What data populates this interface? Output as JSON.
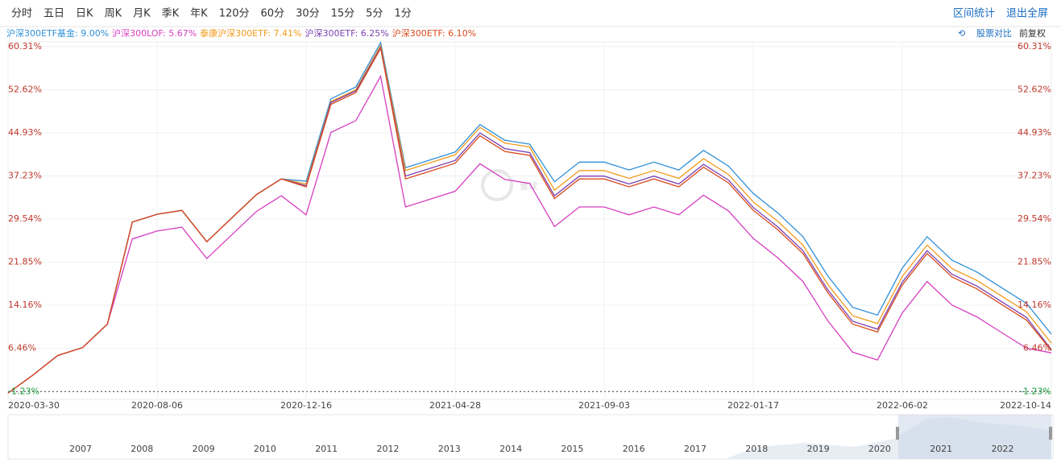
{
  "toolbar": {
    "left": [
      "分时",
      "五日",
      "日K",
      "周K",
      "月K",
      "季K",
      "年K",
      "120分",
      "60分",
      "30分",
      "15分",
      "5分",
      "1分"
    ],
    "right": [
      "区间统计",
      "退出全屏"
    ],
    "compare": "股票对比",
    "adjust": "前复权"
  },
  "watermark": "雪球",
  "navigator_years": [
    "2007",
    "2008",
    "2009",
    "2010",
    "2011",
    "2012",
    "2013",
    "2014",
    "2015",
    "2016",
    "2017",
    "2018",
    "2019",
    "2020",
    "2021",
    "2022"
  ],
  "chart_data": {
    "type": "line",
    "categories": [
      "2020-03-30",
      null,
      null,
      null,
      null,
      null,
      "2020-08-06",
      null,
      null,
      null,
      null,
      null,
      "2020-12-16",
      null,
      null,
      null,
      null,
      null,
      "2021-04-28",
      null,
      null,
      null,
      null,
      null,
      "2021-09-03",
      null,
      null,
      null,
      null,
      null,
      "2022-01-17",
      null,
      null,
      null,
      null,
      null,
      "2022-06-02",
      null,
      null,
      null,
      null,
      null,
      "2022-10-14"
    ],
    "ylim": [
      -2.63,
      61.15
    ],
    "yticks": [
      {
        "value": 60.31,
        "label": "60.31%"
      },
      {
        "value": 52.62,
        "label": "52.62%"
      },
      {
        "value": 44.93,
        "label": "44.93%"
      },
      {
        "value": 37.23,
        "label": "37.23%"
      },
      {
        "value": 29.54,
        "label": "29.54%"
      },
      {
        "value": 21.85,
        "label": "21.85%"
      },
      {
        "value": 14.16,
        "label": "14.16%"
      },
      {
        "value": 6.46,
        "label": "6.46%"
      },
      {
        "value": -1.23,
        "label": "-1.23%"
      }
    ],
    "grid": true,
    "series": [
      {
        "name": "沪深300ETF基金: 9.00%",
        "color": "#2f8fd8",
        "values": [
          -1.5,
          1.7,
          5.2,
          6.6,
          10.8,
          29,
          30.4,
          31.1,
          25.5,
          29.7,
          33.9,
          36.7,
          36.3,
          51,
          53.1,
          61,
          38.7,
          40.1,
          41.5,
          46.4,
          43.6,
          42.9,
          36.2,
          39.7,
          39.7,
          38.3,
          39.7,
          38.3,
          41.8,
          39,
          34.1,
          30.6,
          26.4,
          19.4,
          13.8,
          12.4,
          20.8,
          26.4,
          22.2,
          20.1,
          17.3,
          14.5,
          9.0
        ]
      },
      {
        "name": "沪深300LOF: 5.67%",
        "color": "#d63fc0",
        "values": [
          -1.5,
          1.7,
          5.2,
          6.6,
          10.8,
          26,
          27.4,
          28.1,
          22.5,
          26.7,
          30.9,
          33.7,
          30.3,
          45,
          47.1,
          55,
          31.7,
          33.1,
          34.5,
          39.4,
          36.6,
          35.9,
          28.2,
          31.7,
          31.7,
          30.3,
          31.7,
          30.3,
          33.8,
          31,
          26.1,
          22.6,
          18.4,
          11.4,
          5.8,
          4.4,
          12.8,
          18.4,
          14.2,
          12.1,
          9.3,
          6.5,
          5.67
        ]
      },
      {
        "name": "泰康沪深300ETF: 7.41%",
        "color": "#f29b1a",
        "values": [
          -1.5,
          1.7,
          5.2,
          6.6,
          10.8,
          29,
          30.4,
          31.1,
          25.5,
          29.7,
          33.9,
          36.7,
          35.8,
          50.5,
          52.6,
          60.5,
          38.2,
          39.6,
          41,
          45.9,
          43.1,
          42.4,
          34.7,
          38.2,
          38.2,
          36.8,
          38.2,
          36.8,
          40.3,
          37.5,
          32.6,
          29.1,
          24.9,
          17.9,
          12.3,
          10.9,
          19.3,
          24.9,
          20.7,
          18.6,
          15.8,
          13,
          7.41
        ]
      },
      {
        "name": "沪深300ETF: 6.25%",
        "color": "#7a3fb0",
        "values": [
          -1.5,
          1.7,
          5.2,
          6.6,
          10.8,
          29,
          30.4,
          31.1,
          25.5,
          29.7,
          33.9,
          36.7,
          35.5,
          50.3,
          52.4,
          60.2,
          37.2,
          38.6,
          40,
          44.9,
          42.1,
          41.4,
          33.7,
          37.2,
          37.2,
          35.8,
          37.2,
          35.8,
          39.3,
          36.5,
          31.6,
          28.1,
          23.9,
          16.9,
          11.3,
          9.9,
          18.3,
          23.9,
          19.7,
          17.6,
          14.8,
          12,
          6.25
        ]
      },
      {
        "name": "沪深300ETF: 6.10%",
        "color": "#d94a1e",
        "values": [
          -1.5,
          1.7,
          5.2,
          6.6,
          10.8,
          29,
          30.4,
          31.1,
          25.5,
          29.7,
          33.9,
          36.7,
          35.3,
          50,
          52.1,
          60,
          36.7,
          38.1,
          39.5,
          44.4,
          41.6,
          40.9,
          33.2,
          36.7,
          36.7,
          35.3,
          36.7,
          35.3,
          38.8,
          36,
          31.1,
          27.6,
          23.4,
          16.4,
          10.8,
          9.4,
          17.8,
          23.4,
          19.2,
          17.1,
          14.3,
          11.5,
          6.1
        ]
      }
    ]
  }
}
